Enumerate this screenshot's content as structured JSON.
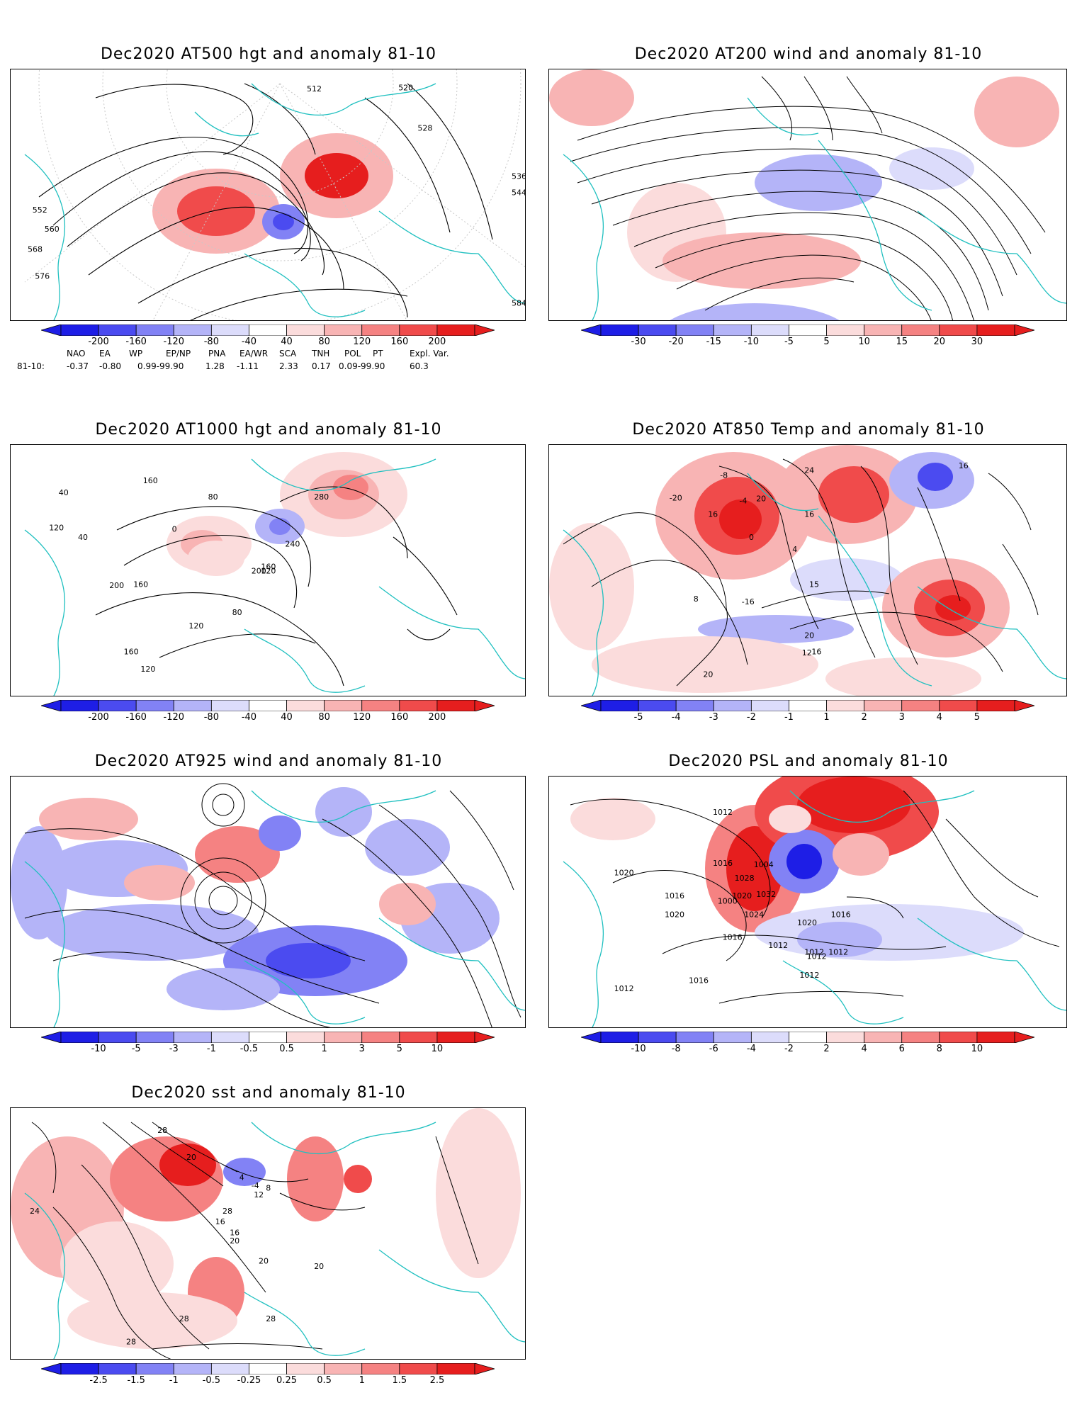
{
  "panels": {
    "z500": {
      "title": "Dec2020 AT500 hgt and anomaly 81-10",
      "colorbar": [
        "-200",
        "-160",
        "-120",
        "-80",
        "-40",
        "40",
        "80",
        "120",
        "160",
        "200"
      ],
      "contour_labels": [
        "512",
        "520",
        "528",
        "536",
        "544",
        "552",
        "560",
        "568",
        "576",
        "584"
      ]
    },
    "u200": {
      "title": "Dec2020 AT200 wind and anomaly 81-10",
      "colorbar": [
        "-30",
        "-20",
        "-15",
        "-10",
        "-5",
        "5",
        "10",
        "15",
        "20",
        "30"
      ]
    },
    "z1000": {
      "title": "Dec2020 AT1000 hgt and anomaly 81-10",
      "colorbar": [
        "-200",
        "-160",
        "-120",
        "-80",
        "-40",
        "40",
        "80",
        "120",
        "160",
        "200"
      ],
      "contour_labels": [
        "40",
        "160",
        "80",
        "40",
        "120",
        "0",
        "280",
        "240",
        "200",
        "160",
        "160",
        "200",
        "120",
        "80",
        "120",
        "160",
        "120"
      ]
    },
    "t850": {
      "title": "Dec2020 AT850 Temp and anomaly 81-10",
      "colorbar": [
        "-5",
        "-4",
        "-3",
        "-2",
        "-1",
        "1",
        "2",
        "3",
        "4",
        "5"
      ],
      "contour_labels": [
        "16",
        "-8",
        "-20",
        "-4",
        "16",
        "16",
        "0",
        "4",
        "15",
        "8",
        "20",
        "12",
        "16",
        "20",
        "24",
        "20",
        "-16"
      ]
    },
    "u925": {
      "title": "Dec2020 AT925 wind and anomaly 81-10",
      "colorbar": [
        "-10",
        "-5",
        "-3",
        "-1",
        "-0.5",
        "0.5",
        "1",
        "3",
        "5",
        "10"
      ]
    },
    "psl": {
      "title": "Dec2020 PSL and anomaly 81-10",
      "colorbar": [
        "-10",
        "-8",
        "-6",
        "-4",
        "-2",
        "2",
        "4",
        "6",
        "8",
        "10"
      ],
      "contour_labels": [
        "1012",
        "1016",
        "1004",
        "1020",
        "1032",
        "1028",
        "1016",
        "1000",
        "1024",
        "1020",
        "1020",
        "1016",
        "1012",
        "1016",
        "1012",
        "1012",
        "1016",
        "1012",
        "1020",
        "1012",
        "1012"
      ]
    },
    "sst": {
      "title": "Dec2020 sst and anomaly 81-10",
      "colorbar": [
        "-2.5",
        "-1.5",
        "-1",
        "-0.5",
        "-0.25",
        "0.25",
        "0.5",
        "1",
        "1.5",
        "2.5"
      ],
      "contour_labels": [
        "28",
        "24",
        "28",
        "20",
        "4",
        "-4",
        "8",
        "12",
        "16",
        "20",
        "16",
        "20",
        "20",
        "28",
        "28",
        "28"
      ]
    }
  },
  "teleconnections": {
    "headers": [
      "NAO",
      "EA",
      "WP",
      "EP/NP",
      "PNA",
      "EA/WR",
      "SCA",
      "TNH",
      "POL",
      "PT",
      "Expl. Var."
    ],
    "row_label": "81-10:",
    "values": [
      "-0.37",
      "-0.80",
      "0.99-99.90",
      "1.28",
      "-1.11",
      "2.33",
      "0.17",
      "0.09-99.90",
      "60.3"
    ]
  },
  "colors": {
    "neg": [
      "#1e1ee6",
      "#4b4bf0",
      "#8282f5",
      "#b4b4f8",
      "#dcdcfb"
    ],
    "pos": [
      "#fbdcdc",
      "#f8b4b4",
      "#f58282",
      "#f04b4b",
      "#e61e1e"
    ],
    "coast": "#20c0c0"
  }
}
